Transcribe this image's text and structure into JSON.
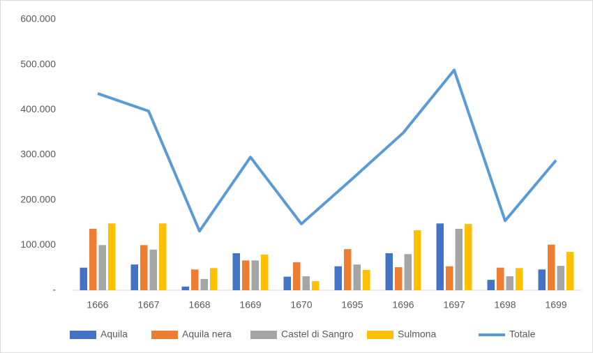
{
  "chart_data": {
    "type": "bar",
    "categories": [
      "1666",
      "1667",
      "1668",
      "1669",
      "1670",
      "1695",
      "1696",
      "1697",
      "1698",
      "1699"
    ],
    "series": [
      {
        "name": "Aquila",
        "color": "#4472c4",
        "type": "bar",
        "values": [
          50000,
          57000,
          8000,
          82000,
          30000,
          53000,
          82000,
          148000,
          23000,
          46000
        ]
      },
      {
        "name": "Aquila nera",
        "color": "#ed7d31",
        "type": "bar",
        "values": [
          136000,
          100000,
          46000,
          66000,
          62000,
          91000,
          51000,
          53000,
          50000,
          101000
        ]
      },
      {
        "name": "Castel di Sangro",
        "color": "#a5a5a5",
        "type": "bar",
        "values": [
          100000,
          90000,
          25000,
          66000,
          31000,
          57000,
          80000,
          136000,
          31000,
          54000
        ]
      },
      {
        "name": "Sulmona",
        "color": "#ffc000",
        "type": "bar",
        "values": [
          148000,
          148000,
          49000,
          79000,
          20000,
          45000,
          133000,
          147000,
          49000,
          85000
        ]
      },
      {
        "name": "Totale",
        "color": "#5b9bd5",
        "type": "line",
        "values": [
          436000,
          397000,
          131000,
          295000,
          147000,
          247000,
          349000,
          488000,
          154000,
          288000
        ]
      }
    ],
    "ylim": [
      0,
      600000
    ],
    "yticks": [
      {
        "value": 0,
        "label": "-"
      },
      {
        "value": 100000,
        "label": "100.000"
      },
      {
        "value": 200000,
        "label": "200.000"
      },
      {
        "value": 300000,
        "label": "300.000"
      },
      {
        "value": 400000,
        "label": "400.000"
      },
      {
        "value": 500000,
        "label": "500.000"
      },
      {
        "value": 600000,
        "label": "600.000"
      }
    ],
    "grid": false,
    "legend": "bottom"
  }
}
